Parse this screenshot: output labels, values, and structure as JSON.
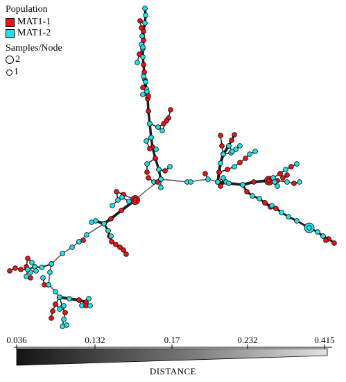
{
  "legend": {
    "title": "Population",
    "items": [
      {
        "label": "MAT1-1",
        "color": "#e8141a"
      },
      {
        "label": "MAT1-2",
        "color": "#22e1e9"
      }
    ]
  },
  "size_legend": {
    "title": "Samples/Node",
    "items": [
      {
        "label": "2"
      },
      {
        "label": "1"
      }
    ]
  },
  "scale": {
    "ticks": [
      "0.036",
      "0.132",
      "0.17",
      "0.232",
      "0.415"
    ],
    "label": "DISTANCE",
    "min": 0.036,
    "max": 0.415
  },
  "colors": {
    "mat1_1": "#e8141a",
    "mat1_2": "#22e1e9",
    "edge_dark": "#1e1e1e",
    "edge_mid": "#6a6a6a"
  }
}
